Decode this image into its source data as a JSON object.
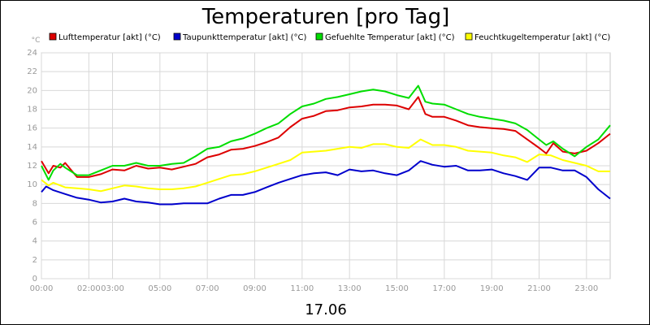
{
  "chart_data": {
    "type": "line",
    "title": "Temperaturen [pro Tag]",
    "xlabel": "17.06",
    "ylabel": "°C",
    "ylim": [
      0,
      24
    ],
    "yticks": [
      0,
      2,
      4,
      6,
      8,
      10,
      12,
      14,
      16,
      18,
      20,
      22,
      24
    ],
    "xlim": [
      0,
      24
    ],
    "xticks": [
      {
        "x": 0,
        "label": "00:00"
      },
      {
        "x": 2,
        "label": "02:00"
      },
      {
        "x": 3,
        "label": "03:00"
      },
      {
        "x": 5,
        "label": "05:00"
      },
      {
        "x": 7,
        "label": "07:00"
      },
      {
        "x": 9,
        "label": "09:00"
      },
      {
        "x": 11,
        "label": "11:00"
      },
      {
        "x": 13,
        "label": "13:00"
      },
      {
        "x": 15,
        "label": "15:00"
      },
      {
        "x": 17,
        "label": "17:00"
      },
      {
        "x": 19,
        "label": "19:00"
      },
      {
        "x": 21,
        "label": "21:00"
      },
      {
        "x": 23,
        "label": "23:00"
      }
    ],
    "grid": true,
    "legend_position": "top",
    "series": [
      {
        "name": "Lufttemperatur [akt] (°C)",
        "color": "#dd0000",
        "x": [
          0,
          0.3,
          0.5,
          0.8,
          1,
          1.5,
          2,
          2.5,
          3,
          3.5,
          4,
          4.5,
          5,
          5.5,
          6,
          6.5,
          7,
          7.5,
          8,
          8.5,
          9,
          9.5,
          10,
          10.5,
          11,
          11.5,
          12,
          12.5,
          13,
          13.5,
          14,
          14.5,
          15,
          15.5,
          15.9,
          16.2,
          16.5,
          17,
          17.5,
          18,
          18.5,
          19,
          19.5,
          20,
          20.5,
          21,
          21.3,
          21.6,
          22,
          22.5,
          23,
          23.5,
          24
        ],
        "values": [
          12.5,
          11.2,
          12.0,
          11.8,
          12.3,
          10.8,
          10.8,
          11.1,
          11.6,
          11.5,
          12.0,
          11.7,
          11.8,
          11.6,
          11.9,
          12.2,
          12.9,
          13.2,
          13.7,
          13.8,
          14.1,
          14.5,
          15.0,
          16.1,
          17.0,
          17.3,
          17.8,
          17.9,
          18.2,
          18.3,
          18.5,
          18.5,
          18.4,
          18.0,
          19.3,
          17.5,
          17.2,
          17.2,
          16.8,
          16.3,
          16.1,
          16.0,
          15.9,
          15.7,
          14.8,
          13.9,
          13.3,
          14.4,
          13.5,
          13.3,
          13.6,
          14.4,
          15.4
        ]
      },
      {
        "name": "Taupunkttemperatur [akt] (°C)",
        "color": "#0000cc",
        "x": [
          0,
          0.2,
          0.5,
          1,
          1.5,
          2,
          2.5,
          3,
          3.5,
          4,
          4.5,
          5,
          5.5,
          6,
          6.5,
          7,
          7.5,
          8,
          8.5,
          9,
          9.5,
          10,
          10.5,
          11,
          11.5,
          12,
          12.5,
          13,
          13.5,
          14,
          14.5,
          15,
          15.5,
          16,
          16.5,
          17,
          17.5,
          18,
          18.5,
          19,
          19.5,
          20,
          20.5,
          21,
          21.5,
          22,
          22.5,
          23,
          23.5,
          24
        ],
        "values": [
          9.2,
          9.8,
          9.4,
          9.0,
          8.6,
          8.4,
          8.1,
          8.2,
          8.5,
          8.2,
          8.1,
          7.9,
          7.9,
          8.0,
          8.0,
          8.0,
          8.5,
          8.9,
          8.9,
          9.2,
          9.7,
          10.2,
          10.6,
          11.0,
          11.2,
          11.3,
          11.0,
          11.6,
          11.4,
          11.5,
          11.2,
          11.0,
          11.5,
          12.5,
          12.1,
          11.9,
          12.0,
          11.5,
          11.5,
          11.6,
          11.2,
          10.9,
          10.5,
          11.8,
          11.8,
          11.5,
          11.5,
          10.8,
          9.5,
          8.5
        ]
      },
      {
        "name": "Gefuehlte Temperatur [akt] (°C)",
        "color": "#00dd00",
        "x": [
          0,
          0.3,
          0.5,
          0.8,
          1,
          1.5,
          2,
          2.5,
          3,
          3.5,
          4,
          4.5,
          5,
          5.5,
          6,
          6.5,
          7,
          7.5,
          8,
          8.5,
          9,
          9.5,
          10,
          10.5,
          11,
          11.5,
          12,
          12.5,
          13,
          13.5,
          14,
          14.5,
          15,
          15.5,
          15.9,
          16.2,
          16.5,
          17,
          17.5,
          18,
          18.5,
          19,
          19.5,
          20,
          20.5,
          21,
          21.3,
          21.6,
          22,
          22.5,
          23,
          23.5,
          24
        ],
        "values": [
          12.0,
          10.5,
          11.5,
          12.2,
          11.8,
          11.0,
          11.0,
          11.5,
          12.0,
          12.0,
          12.3,
          12.0,
          12.0,
          12.2,
          12.3,
          13.0,
          13.8,
          14.0,
          14.6,
          14.9,
          15.4,
          16.0,
          16.5,
          17.5,
          18.3,
          18.6,
          19.1,
          19.3,
          19.6,
          19.9,
          20.1,
          19.9,
          19.5,
          19.2,
          20.5,
          18.8,
          18.6,
          18.5,
          18.0,
          17.5,
          17.2,
          17.0,
          16.8,
          16.5,
          15.8,
          14.8,
          14.2,
          14.6,
          13.8,
          13.0,
          14.0,
          14.8,
          16.3
        ]
      },
      {
        "name": "Feuchtkugeltemperatur [akt] (°C)",
        "color": "#ffff00",
        "x": [
          0,
          0.3,
          0.5,
          1,
          1.5,
          2,
          2.5,
          3,
          3.5,
          4,
          4.5,
          5,
          5.5,
          6,
          6.5,
          7,
          7.5,
          8,
          8.5,
          9,
          9.5,
          10,
          10.5,
          11,
          11.5,
          12,
          12.5,
          13,
          13.5,
          14,
          14.5,
          15,
          15.5,
          16,
          16.5,
          17,
          17.5,
          18,
          18.5,
          19,
          19.5,
          20,
          20.5,
          21,
          21.5,
          22,
          22.5,
          23,
          23.5,
          24
        ],
        "values": [
          10.5,
          9.9,
          10.2,
          9.7,
          9.6,
          9.5,
          9.3,
          9.6,
          9.9,
          9.8,
          9.6,
          9.5,
          9.5,
          9.6,
          9.8,
          10.2,
          10.6,
          11.0,
          11.1,
          11.4,
          11.8,
          12.2,
          12.6,
          13.4,
          13.5,
          13.6,
          13.8,
          14.0,
          13.9,
          14.3,
          14.3,
          14.0,
          13.9,
          14.8,
          14.2,
          14.2,
          14.0,
          13.6,
          13.5,
          13.4,
          13.1,
          12.9,
          12.4,
          13.2,
          13.1,
          12.6,
          12.3,
          12.0,
          11.4,
          11.4
        ]
      }
    ]
  }
}
